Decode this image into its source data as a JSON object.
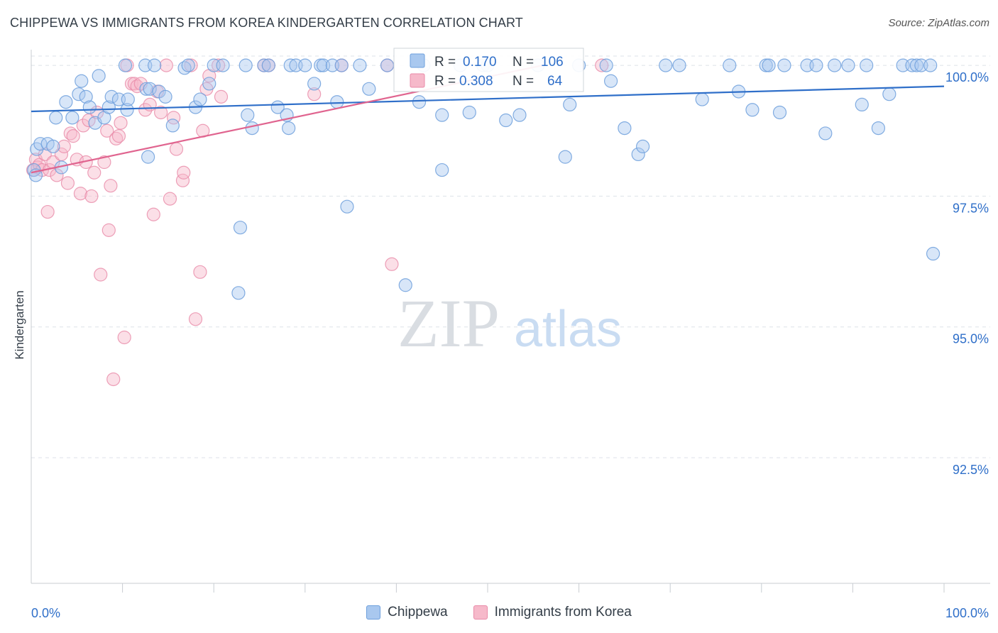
{
  "header": {
    "title": "CHIPPEWA VS IMMIGRANTS FROM KOREA KINDERGARTEN CORRELATION CHART",
    "source": "Source: ZipAtlas.com"
  },
  "watermark": {
    "zip": "ZIP",
    "atlas": "atlas"
  },
  "colors": {
    "blue_fill": "#a9c8ef",
    "blue_stroke": "#6d9fdc",
    "blue_line": "#2f6fc9",
    "pink_fill": "#f6b9ca",
    "pink_stroke": "#e98aa8",
    "pink_line": "#e0648f",
    "value_text": "#2f6fc9",
    "grid": "#dde2e8",
    "axis": "#c8ccd2"
  },
  "stats_box": {
    "rows": [
      {
        "r_label": "R =",
        "r_value": "0.170",
        "n_label": "N =",
        "n_value": "106"
      },
      {
        "r_label": "R =",
        "r_value": "0.308",
        "n_label": "N =",
        "n_value": "64"
      }
    ]
  },
  "chart_data": {
    "type": "scatter",
    "title": "CHIPPEWA VS IMMIGRANTS FROM KOREA KINDERGARTEN CORRELATION CHART",
    "xlabel": "",
    "ylabel": "Kindergarten",
    "xlim": [
      0,
      100
    ],
    "ylim": [
      90.1,
      100.3
    ],
    "x_tick_labels": [
      "0.0%",
      "100.0%"
    ],
    "y_ticks": [
      92.5,
      95.0,
      97.5,
      100.0
    ],
    "y_tick_labels": [
      "92.5%",
      "95.0%",
      "97.5%",
      "100.0%"
    ],
    "grid": "horizontal dashed",
    "legend_position": "bottom-center",
    "series": [
      {
        "name": "Chippewa",
        "r": 0.17,
        "n": 106,
        "trend": {
          "x": [
            0,
            100
          ],
          "y": [
            99.12,
            99.6
          ]
        },
        "points": [
          [
            0.3,
            98.0
          ],
          [
            0.5,
            97.9
          ],
          [
            0.6,
            98.4
          ],
          [
            1.0,
            98.5
          ],
          [
            1.8,
            98.5
          ],
          [
            2.4,
            98.45
          ],
          [
            3.3,
            98.05
          ],
          [
            2.7,
            99.0
          ],
          [
            3.8,
            99.3
          ],
          [
            4.5,
            99.0
          ],
          [
            5.2,
            99.45
          ],
          [
            5.5,
            99.7
          ],
          [
            6.0,
            99.4
          ],
          [
            6.4,
            99.2
          ],
          [
            7.0,
            98.9
          ],
          [
            7.4,
            99.8
          ],
          [
            8.0,
            99.0
          ],
          [
            8.5,
            99.2
          ],
          [
            8.8,
            99.4
          ],
          [
            9.6,
            99.35
          ],
          [
            10.5,
            99.15
          ],
          [
            10.6,
            99.35
          ],
          [
            10.3,
            100.0
          ],
          [
            12.5,
            100.0
          ],
          [
            12.6,
            99.55
          ],
          [
            13.0,
            99.55
          ],
          [
            12.8,
            98.25
          ],
          [
            13.5,
            100.0
          ],
          [
            14.0,
            99.5
          ],
          [
            14.7,
            99.4
          ],
          [
            15.5,
            98.85
          ],
          [
            16.8,
            99.95
          ],
          [
            17.2,
            100.0
          ],
          [
            18.0,
            99.2
          ],
          [
            18.5,
            99.35
          ],
          [
            19.5,
            99.65
          ],
          [
            20.0,
            100.0
          ],
          [
            21.0,
            100.0
          ],
          [
            22.9,
            96.9
          ],
          [
            22.7,
            95.65
          ],
          [
            23.5,
            100.0
          ],
          [
            23.7,
            99.05
          ],
          [
            24.2,
            98.8
          ],
          [
            25.5,
            100.0
          ],
          [
            26.0,
            100.0
          ],
          [
            27.0,
            99.2
          ],
          [
            28.0,
            99.05
          ],
          [
            28.2,
            98.8
          ],
          [
            28.4,
            100.0
          ],
          [
            29.0,
            100.0
          ],
          [
            30.0,
            100.0
          ],
          [
            31.0,
            99.65
          ],
          [
            31.7,
            100.0
          ],
          [
            32.0,
            100.0
          ],
          [
            33.0,
            100.0
          ],
          [
            33.5,
            99.3
          ],
          [
            34.0,
            100.0
          ],
          [
            34.6,
            97.3
          ],
          [
            36.0,
            100.0
          ],
          [
            37.0,
            99.55
          ],
          [
            39.0,
            100.0
          ],
          [
            41.0,
            95.8
          ],
          [
            42.5,
            99.3
          ],
          [
            43.0,
            100.0
          ],
          [
            45.0,
            99.05
          ],
          [
            45.0,
            98.0
          ],
          [
            47.0,
            100.0
          ],
          [
            48.0,
            99.1
          ],
          [
            49.5,
            100.0
          ],
          [
            50.0,
            100.0
          ],
          [
            52.0,
            98.95
          ],
          [
            53.5,
            99.05
          ],
          [
            55.5,
            100.0
          ],
          [
            58.5,
            98.25
          ],
          [
            59.0,
            99.25
          ],
          [
            60.0,
            100.0
          ],
          [
            63.0,
            100.0
          ],
          [
            63.5,
            99.7
          ],
          [
            65.0,
            98.8
          ],
          [
            66.5,
            98.3
          ],
          [
            67.0,
            98.45
          ],
          [
            69.5,
            100.0
          ],
          [
            71.0,
            100.0
          ],
          [
            73.5,
            99.35
          ],
          [
            76.5,
            100.0
          ],
          [
            77.5,
            99.5
          ],
          [
            79.0,
            99.15
          ],
          [
            80.5,
            100.0
          ],
          [
            80.8,
            100.0
          ],
          [
            82.0,
            99.1
          ],
          [
            82.5,
            100.0
          ],
          [
            85.0,
            100.0
          ],
          [
            86.0,
            100.0
          ],
          [
            87.0,
            98.7
          ],
          [
            88.0,
            100.0
          ],
          [
            89.5,
            100.0
          ],
          [
            91.0,
            99.25
          ],
          [
            91.5,
            100.0
          ],
          [
            92.8,
            98.8
          ],
          [
            94.0,
            99.45
          ],
          [
            95.5,
            100.0
          ],
          [
            96.5,
            100.0
          ],
          [
            97.0,
            100.0
          ],
          [
            97.5,
            100.0
          ],
          [
            98.5,
            100.0
          ],
          [
            98.8,
            96.4
          ]
        ]
      },
      {
        "name": "Immigrants from Korea",
        "r": 0.308,
        "n": 64,
        "trend": {
          "x": [
            0,
            56
          ],
          "y": [
            97.95,
            100.0
          ]
        },
        "points": [
          [
            0.2,
            98.0
          ],
          [
            0.5,
            98.2
          ],
          [
            0.7,
            98.05
          ],
          [
            0.9,
            98.1
          ],
          [
            1.2,
            98.0
          ],
          [
            1.5,
            98.3
          ],
          [
            1.8,
            97.2
          ],
          [
            2.0,
            98.0
          ],
          [
            2.4,
            98.15
          ],
          [
            2.8,
            97.9
          ],
          [
            3.3,
            98.3
          ],
          [
            3.6,
            98.45
          ],
          [
            4.0,
            97.75
          ],
          [
            4.3,
            98.7
          ],
          [
            4.6,
            98.65
          ],
          [
            5.0,
            98.2
          ],
          [
            5.4,
            97.55
          ],
          [
            5.7,
            98.85
          ],
          [
            6.0,
            98.15
          ],
          [
            6.3,
            98.95
          ],
          [
            6.6,
            97.5
          ],
          [
            6.9,
            97.95
          ],
          [
            7.2,
            99.1
          ],
          [
            7.6,
            96.0
          ],
          [
            8.0,
            98.15
          ],
          [
            8.3,
            98.75
          ],
          [
            8.5,
            96.85
          ],
          [
            8.7,
            97.7
          ],
          [
            9.0,
            94.0
          ],
          [
            9.3,
            98.6
          ],
          [
            9.6,
            98.65
          ],
          [
            9.8,
            98.9
          ],
          [
            10.2,
            94.8
          ],
          [
            10.5,
            100.0
          ],
          [
            11.0,
            99.65
          ],
          [
            11.3,
            99.65
          ],
          [
            11.6,
            99.6
          ],
          [
            12.0,
            99.65
          ],
          [
            12.5,
            99.15
          ],
          [
            13.0,
            99.25
          ],
          [
            13.4,
            97.15
          ],
          [
            13.8,
            99.5
          ],
          [
            14.2,
            99.1
          ],
          [
            14.8,
            100.0
          ],
          [
            15.2,
            97.45
          ],
          [
            15.6,
            99.0
          ],
          [
            15.9,
            98.4
          ],
          [
            16.6,
            97.8
          ],
          [
            16.7,
            97.95
          ],
          [
            17.5,
            100.0
          ],
          [
            18.0,
            95.15
          ],
          [
            18.5,
            96.05
          ],
          [
            18.8,
            98.75
          ],
          [
            19.2,
            99.55
          ],
          [
            19.5,
            99.8
          ],
          [
            20.5,
            100.0
          ],
          [
            20.8,
            99.4
          ],
          [
            25.5,
            100.0
          ],
          [
            26.0,
            100.0
          ],
          [
            31.0,
            99.45
          ],
          [
            34.0,
            100.0
          ],
          [
            39.0,
            100.0
          ],
          [
            39.5,
            96.2
          ],
          [
            62.5,
            100.0
          ]
        ]
      }
    ]
  }
}
